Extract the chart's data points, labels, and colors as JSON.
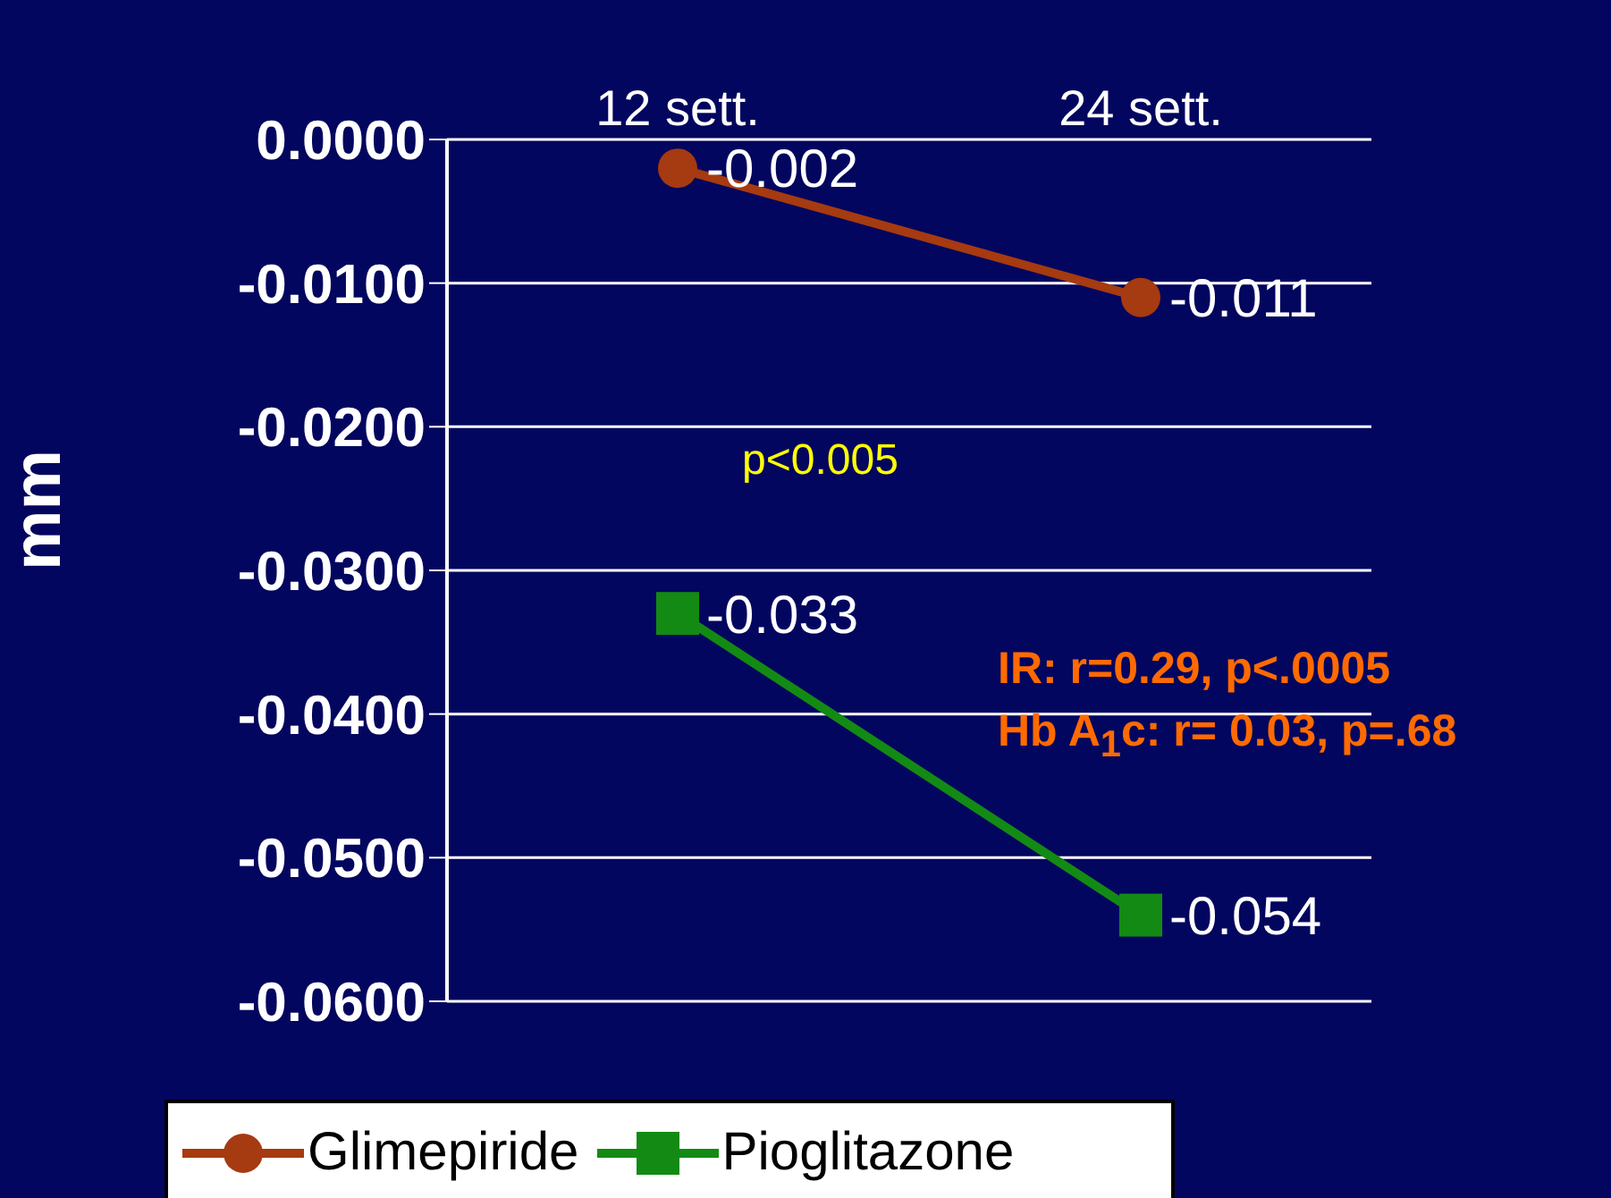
{
  "chart_data": {
    "type": "line",
    "ylabel": "mm",
    "categories": [
      "12 sett.",
      "24 sett."
    ],
    "series": [
      {
        "name": "Glimepiride",
        "color": "#a63a10",
        "marker": "circle",
        "values": [
          -0.002,
          -0.011
        ]
      },
      {
        "name": "Pioglitazone",
        "color": "#138a13",
        "marker": "square",
        "values": [
          -0.033,
          -0.054
        ]
      }
    ],
    "ylim": [
      -0.06,
      0
    ],
    "yticks": [
      {
        "value": 0,
        "label": "0.0000"
      },
      {
        "value": -0.01,
        "label": "-0.0100"
      },
      {
        "value": -0.02,
        "label": "-0.0200"
      },
      {
        "value": -0.03,
        "label": "-0.0300"
      },
      {
        "value": -0.04,
        "label": "-0.0400"
      },
      {
        "value": -0.05,
        "label": "-0.0500"
      },
      {
        "value": -0.06,
        "label": "-0.0600"
      }
    ],
    "grid": "y",
    "legend": "bottom",
    "data_labels": true,
    "annotations": [
      "p<0.005",
      "IR: r=0.29, p<.0005",
      "Hb A$_{1}$c: r= 0.03, p=.68"
    ]
  }
}
